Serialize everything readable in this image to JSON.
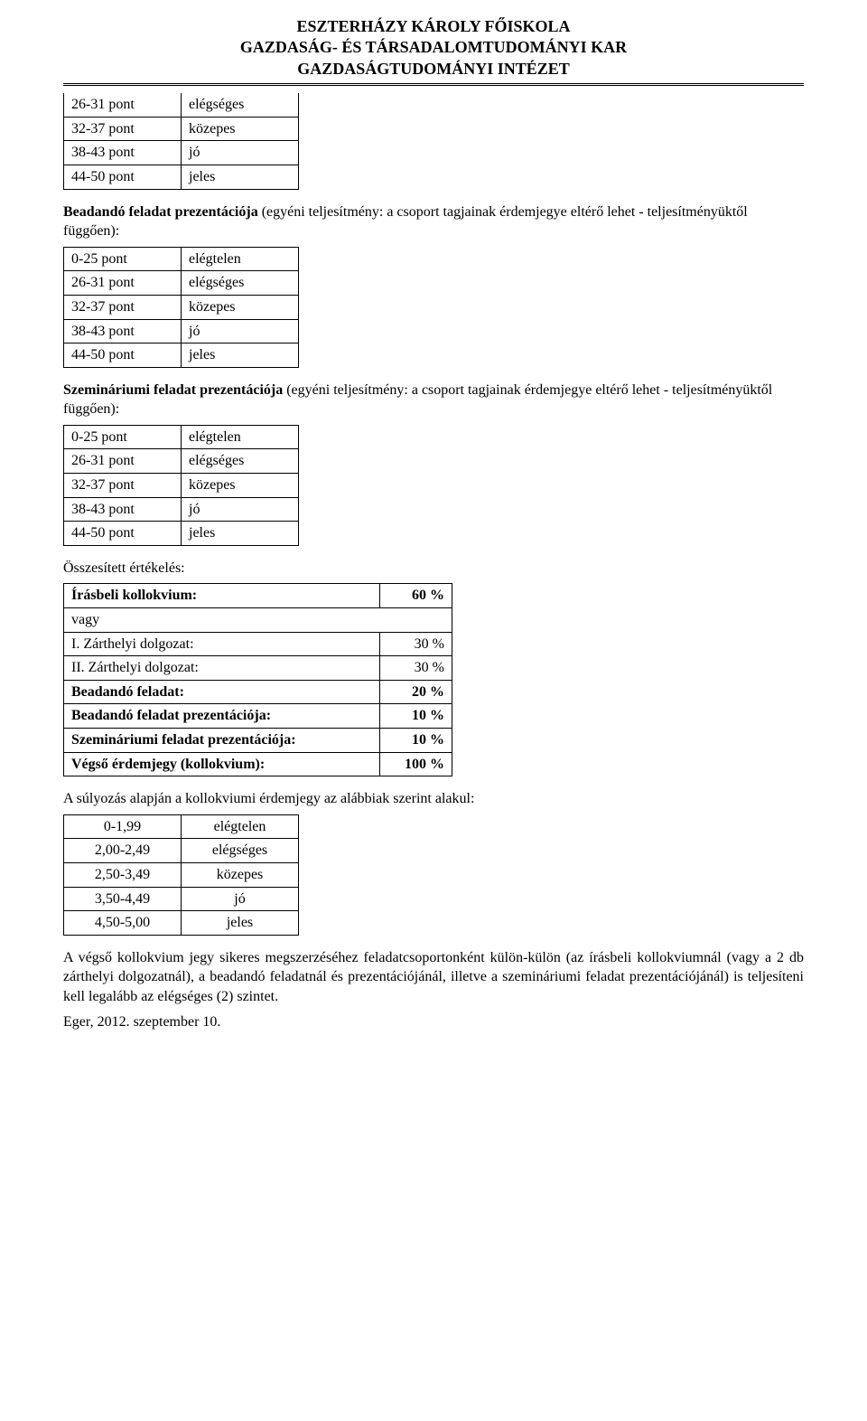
{
  "header": {
    "line1": "ESZTERHÁZY KÁROLY FŐISKOLA",
    "line2": "GAZDASÁG- ÉS TÁRSADALOMTUDOMÁNYI KAR",
    "line3": "GAZDASÁGTUDOMÁNYI INTÉZET"
  },
  "table1": {
    "rows": [
      [
        "26-31 pont",
        "elégséges"
      ],
      [
        "32-37 pont",
        "közepes"
      ],
      [
        "38-43 pont",
        "jó"
      ],
      [
        "44-50 pont",
        "jeles"
      ]
    ]
  },
  "para1": {
    "bold": "Beadandó feladat prezentációja",
    "rest": " (egyéni teljesítmény: a csoport tagjainak érdemjegye eltérő lehet - teljesítményüktől függően):"
  },
  "table2": {
    "rows": [
      [
        "0-25 pont",
        "elégtelen"
      ],
      [
        "26-31 pont",
        "elégséges"
      ],
      [
        "32-37 pont",
        "közepes"
      ],
      [
        "38-43 pont",
        "jó"
      ],
      [
        "44-50 pont",
        "jeles"
      ]
    ]
  },
  "para2": {
    "bold": "Szemináriumi feladat prezentációja",
    "rest": " (egyéni teljesítmény: a csoport tagjainak érdemjegye eltérő lehet - teljesítményüktől függően):"
  },
  "table3": {
    "rows": [
      [
        "0-25 pont",
        "elégtelen"
      ],
      [
        "26-31 pont",
        "elégséges"
      ],
      [
        "32-37 pont",
        "közepes"
      ],
      [
        "38-43 pont",
        "jó"
      ],
      [
        "44-50 pont",
        "jeles"
      ]
    ]
  },
  "summary_label": "Összesített értékelés:",
  "summary": {
    "rows": [
      {
        "label": "Írásbeli kollokvium:",
        "value": "60 %",
        "bold": true
      },
      {
        "label": "vagy",
        "value": "",
        "span": true
      },
      {
        "label": "I. Zárthelyi dolgozat:",
        "value": "30 %",
        "bold": false
      },
      {
        "label": "II. Zárthelyi dolgozat:",
        "value": "30 %",
        "bold": false
      },
      {
        "label": "Beadandó feladat:",
        "value": "20 %",
        "bold": true
      },
      {
        "label": "Beadandó feladat prezentációja:",
        "value": "10 %",
        "bold": true
      },
      {
        "label": "Szemináriumi feladat prezentációja:",
        "value": "10 %",
        "bold": true
      },
      {
        "label": "Végső érdemjegy (kollokvium):",
        "value": "100 %",
        "bold": true
      }
    ]
  },
  "para3": "A súlyozás alapján a kollokviumi érdemjegy az alábbiak szerint alakul:",
  "table4": {
    "rows": [
      [
        "0-1,99",
        "elégtelen"
      ],
      [
        "2,00-2,49",
        "elégséges"
      ],
      [
        "2,50-3,49",
        "közepes"
      ],
      [
        "3,50-4,49",
        "jó"
      ],
      [
        "4,50-5,00",
        "jeles"
      ]
    ]
  },
  "para4": "A végső kollokvium jegy sikeres megszerzéséhez feladatcsoportonként külön-külön (az írásbeli kollokviumnál (vagy a 2 db zárthelyi dolgozatnál), a beadandó feladatnál és prezentációjánál, illetve a szemináriumi feladat prezentációjánál) is teljesíteni kell legalább az elégséges (2) szintet.",
  "footer": "Eger, 2012. szeptember 10."
}
